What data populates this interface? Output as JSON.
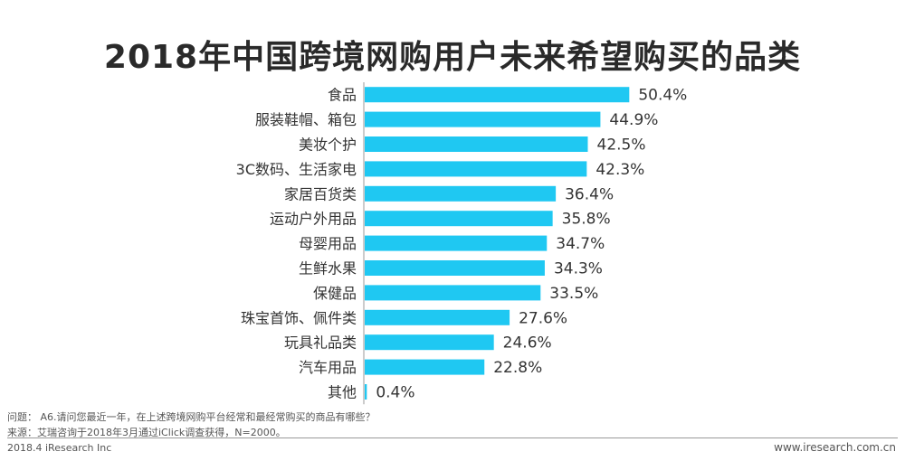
{
  "chart_data": {
    "type": "bar",
    "orientation": "horizontal",
    "title": "2018年中国跨境网购用户未来希望购买的品类",
    "categories": [
      "食品",
      "服装鞋帽、箱包",
      "美妆个护",
      "3C数码、生活家电",
      "家居百货类",
      "运动户外用品",
      "母婴用品",
      "生鲜水果",
      "保健品",
      "珠宝首饰、佩件类",
      "玩具礼品类",
      "汽车用品",
      "其他"
    ],
    "values": [
      50.4,
      44.9,
      42.5,
      42.3,
      36.4,
      35.8,
      34.7,
      34.3,
      33.5,
      27.6,
      24.6,
      22.8,
      0.4
    ],
    "value_labels": [
      "50.4%",
      "44.9%",
      "42.5%",
      "42.3%",
      "36.4%",
      "35.8%",
      "34.7%",
      "34.3%",
      "33.5%",
      "27.6%",
      "24.6%",
      "22.8%",
      "0.4%"
    ],
    "bar_color": "#1fc8f2",
    "axis_color": "#9a9a9a",
    "xlim": [
      0,
      100
    ]
  },
  "footnotes": {
    "question": "问题： A6.请问您最近一年，在上述跨境网购平台经常和最经常购买的商品有哪些？",
    "source": "来源：艾瑞咨询于2018年3月通过iClick调查获得，N=2000。"
  },
  "footer": {
    "left": "2018.4 iResearch Inc",
    "right": "www.iresearch.com.cn"
  }
}
